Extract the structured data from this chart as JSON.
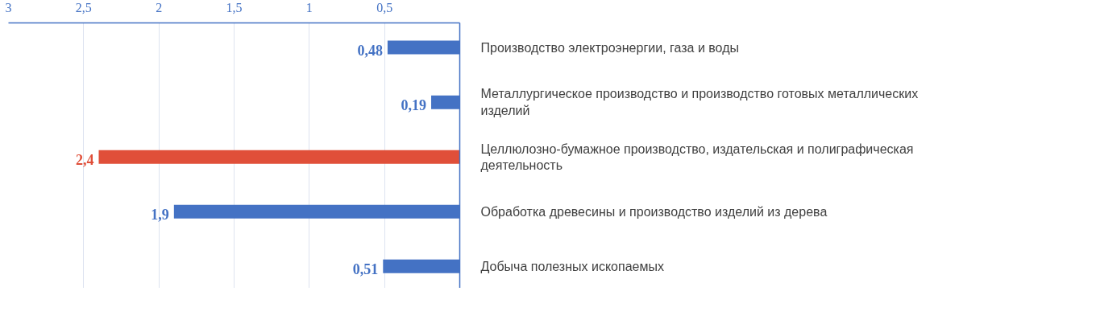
{
  "chart_data": {
    "type": "bar",
    "orientation": "horizontal",
    "categories": [
      "Производство электроэнергии, газа и воды",
      "Металлургическое производство и производство готовых металлических изделий",
      "Целлюлозно-бумажное производство, издательская и полиграфическая деятельность",
      "Обработка древесины и производство изделий из дерева",
      "Добыча полезных ископаемых"
    ],
    "values": [
      0.48,
      0.19,
      2.4,
      1.9,
      0.51
    ],
    "colors": [
      "#4472c4",
      "#4472c4",
      "#e04f39",
      "#4472c4",
      "#4472c4"
    ],
    "value_labels": [
      "0,48",
      "0,19",
      "2,4",
      "1,9",
      "0,51"
    ],
    "xlim": [
      3,
      0
    ],
    "xticks": [
      3,
      {
        "value": 2.5,
        "label": "2,5"
      },
      2,
      {
        "value": 1.5,
        "label": "1,5"
      },
      1,
      {
        "value": 0.5,
        "label": "0,5"
      }
    ],
    "grid": "x"
  }
}
